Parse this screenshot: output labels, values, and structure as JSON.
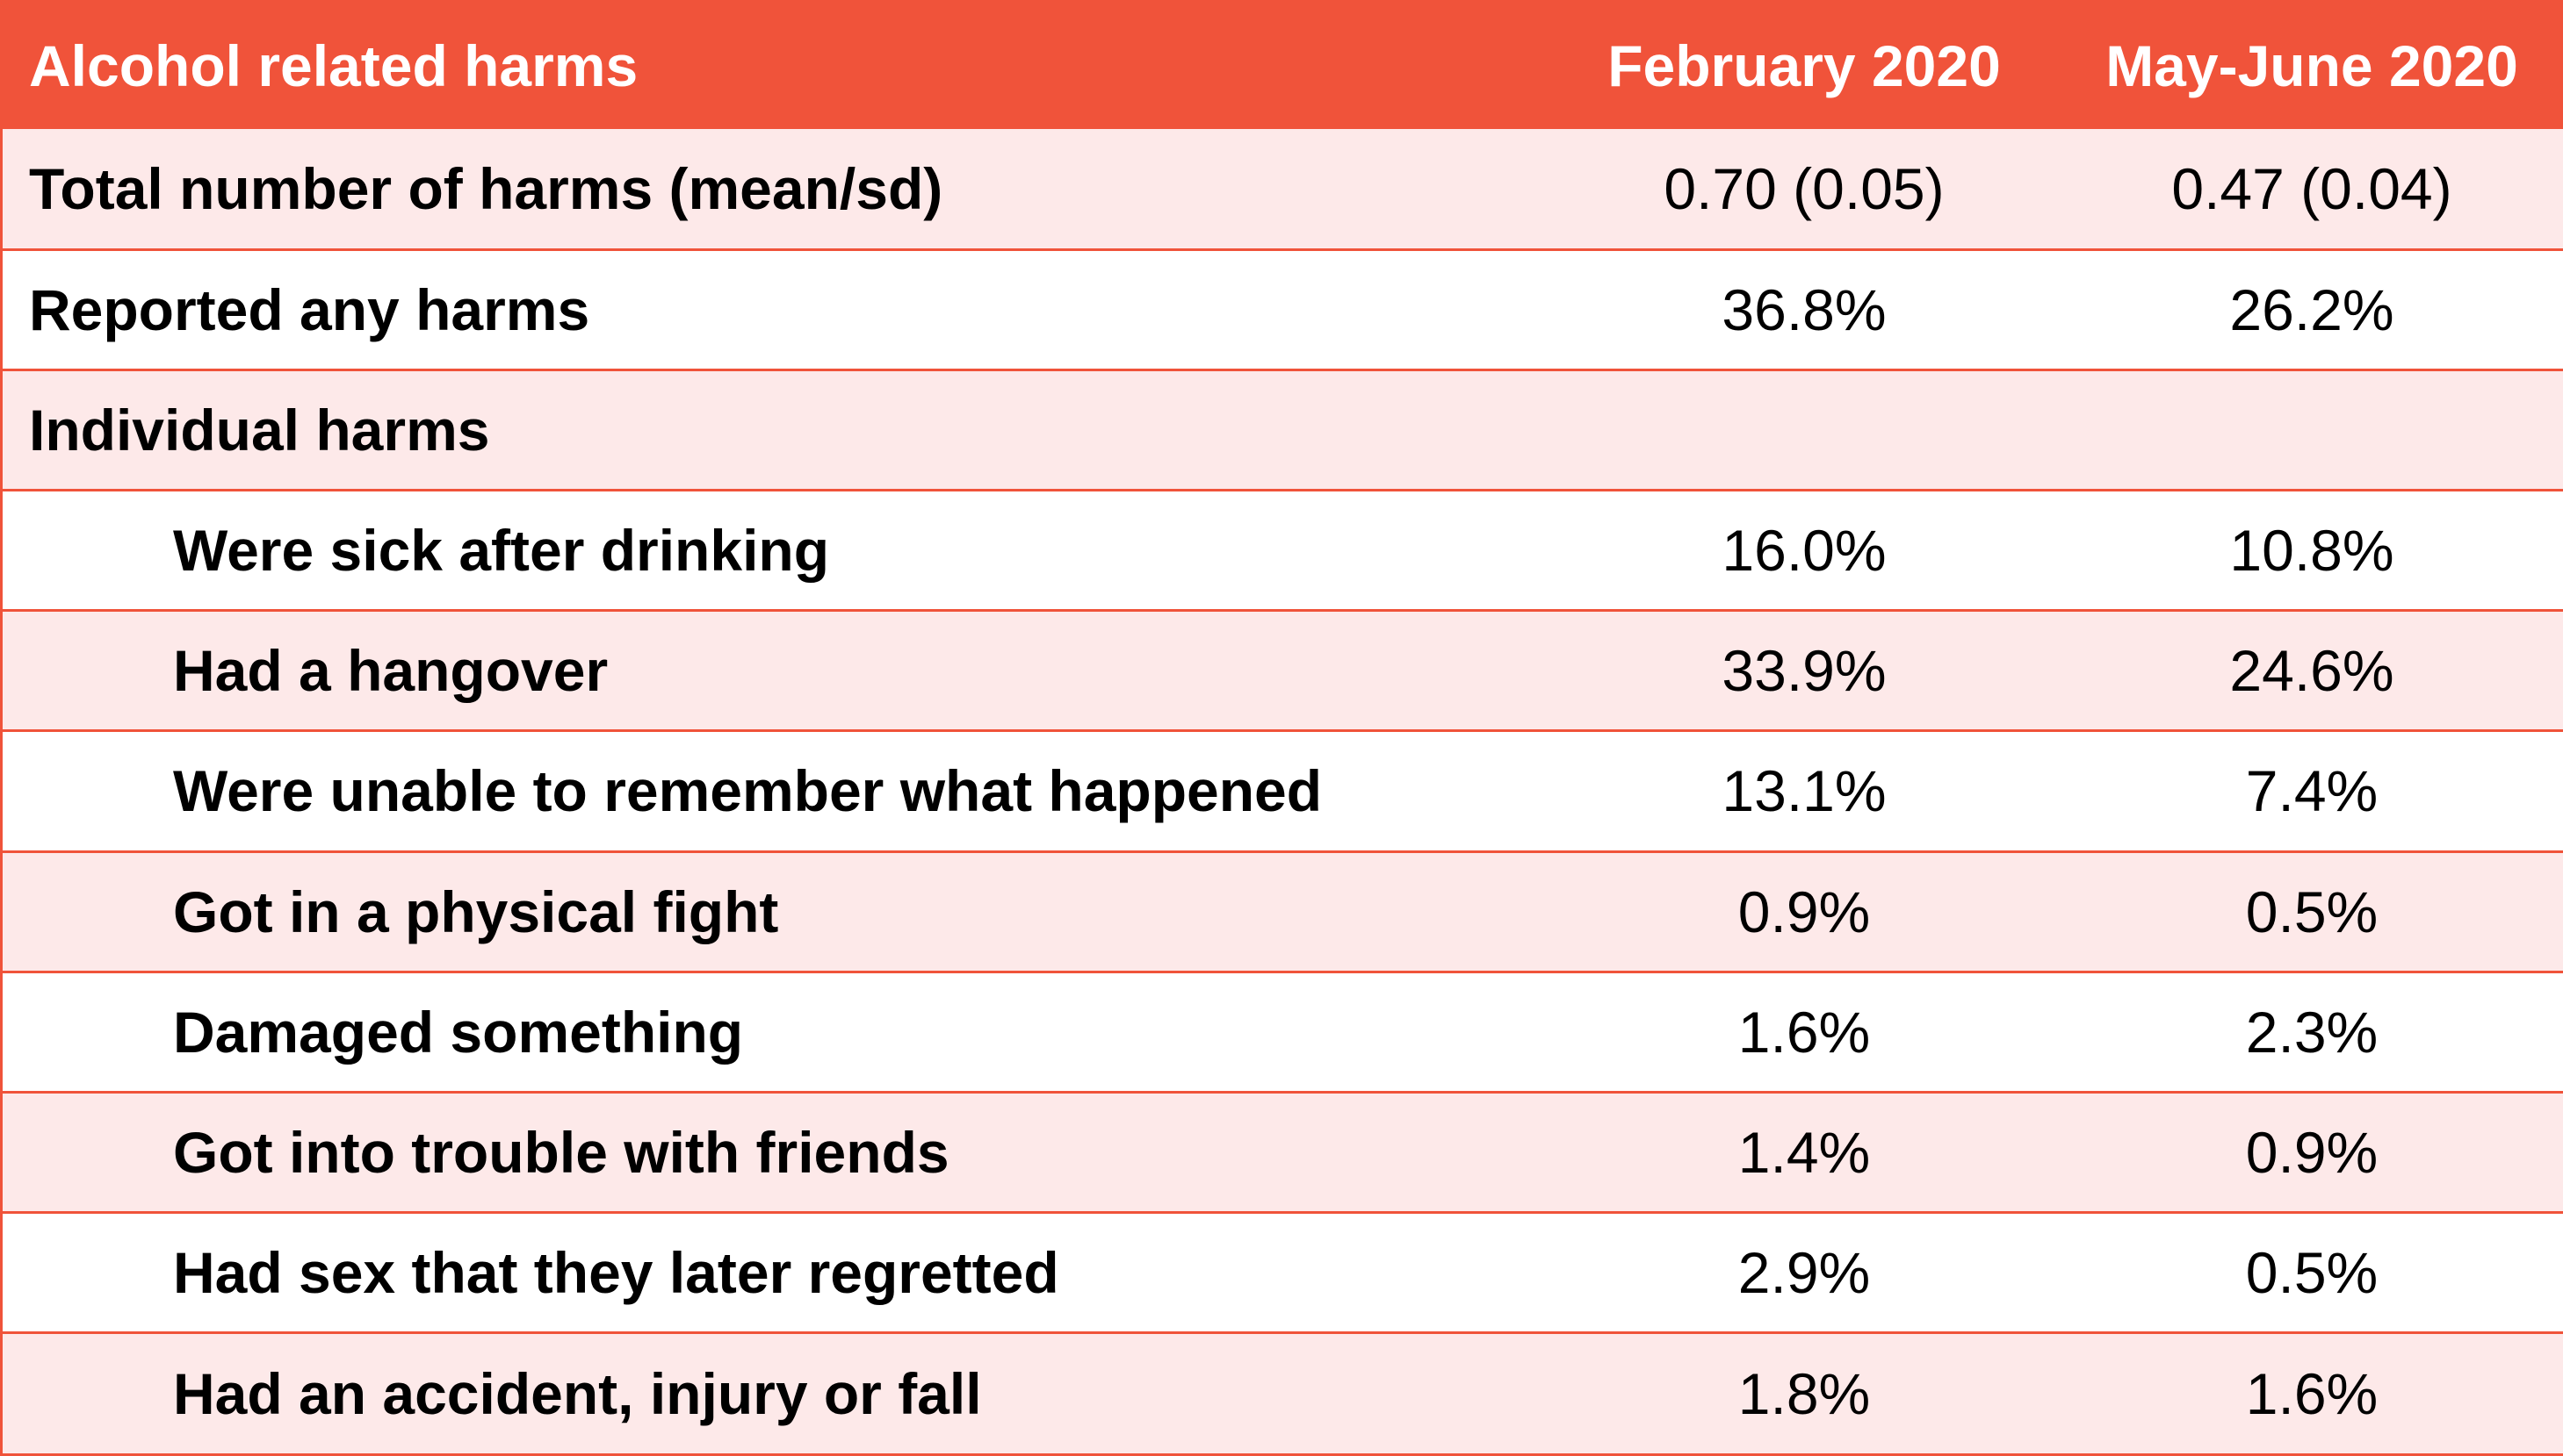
{
  "header": {
    "label": "Alcohol related harms",
    "col_feb": "February 2020",
    "col_may": "May-June 2020"
  },
  "rows": [
    {
      "label": "Total number of harms (mean/sd)",
      "feb": "0.70 (0.05)",
      "may": "0.47 (0.04)"
    },
    {
      "label": "Reported any harms",
      "feb": "36.8%",
      "may": "26.2%"
    },
    {
      "label": "Individual harms",
      "feb": "",
      "may": ""
    },
    {
      "label": "Were sick after drinking",
      "feb": "16.0%",
      "may": "10.8%"
    },
    {
      "label": "Had a hangover",
      "feb": "33.9%",
      "may": "24.6%"
    },
    {
      "label": "Were unable to remember what happened",
      "feb": "13.1%",
      "may": "7.4%"
    },
    {
      "label": "Got in a physical fight",
      "feb": "0.9%",
      "may": "0.5%"
    },
    {
      "label": "Damaged something",
      "feb": "1.6%",
      "may": "2.3%"
    },
    {
      "label": "Got into trouble with friends",
      "feb": "1.4%",
      "may": "0.9%"
    },
    {
      "label": "Had sex that they later regretted",
      "feb": "2.9%",
      "may": "0.5%"
    },
    {
      "label": "Had an accident, injury or fall",
      "feb": "1.8%",
      "may": "1.6%"
    }
  ],
  "colors": {
    "header_background": "#f0533a",
    "header_text": "#ffffff",
    "row_shaded": "#fde9e9",
    "row_plain": "#ffffff",
    "grid_lines": "#f0533a"
  }
}
